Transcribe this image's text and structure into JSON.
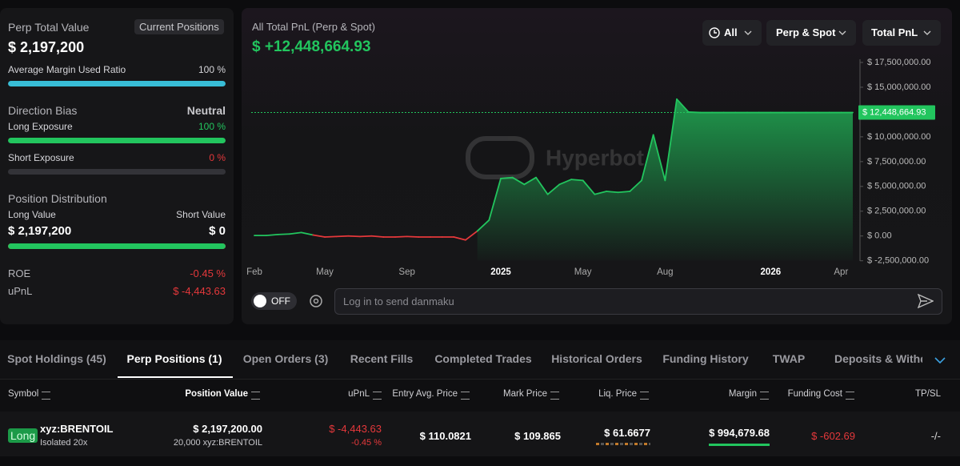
{
  "summary": {
    "perp_total_value_label": "Perp Total Value",
    "perp_total_value": "$ 2,197,200",
    "current_positions_button": "Current Positions",
    "margin_ratio_label": "Average Margin Used Ratio",
    "margin_ratio": {
      "value": 100,
      "label": "100 %"
    },
    "direction_bias_label": "Direction Bias",
    "direction_bias": "Neutral",
    "long_exposure_label": "Long Exposure",
    "long_exposure": {
      "value": 100,
      "label": "100 %"
    },
    "short_exposure_label": "Short Exposure",
    "short_exposure": {
      "value": 0,
      "label": "0 %"
    },
    "position_distribution_label": "Position Distribution",
    "long_value_label": "Long Value",
    "short_value_label": "Short Value",
    "long_value": {
      "value": 2197200,
      "label": "$ 2,197,200"
    },
    "short_value": {
      "value": 0,
      "label": "$ 0"
    },
    "roe_label": "ROE",
    "roe": "-0.45 %",
    "upnl_label": "uPnL",
    "upnl": "$ -4,443.63"
  },
  "chart": {
    "type": "line",
    "title": "All Total PnL (Perp & Spot)",
    "headline_value": "$ +12,448,664.93",
    "current_value_label": "$ 12,448,664.93",
    "watermark": "Hyperbot",
    "filters": [
      "All",
      "Perp & Spot",
      "Total PnL"
    ],
    "positive_color": "#22c55e",
    "negative_color": "#e5383b",
    "categories": [
      "Feb",
      null,
      null,
      null,
      null,
      null,
      "May",
      null,
      null,
      null,
      null,
      null,
      null,
      "Sep",
      null,
      null,
      null,
      null,
      null,
      null,
      null,
      "2025",
      null,
      null,
      null,
      null,
      null,
      null,
      "May",
      null,
      null,
      null,
      null,
      null,
      null,
      "Aug",
      null,
      null,
      null,
      null,
      null,
      null,
      null,
      null,
      "2026",
      null,
      null,
      null,
      null,
      null,
      "Apr",
      null
    ],
    "values": [
      50000,
      50000,
      150000,
      200000,
      350000,
      100000,
      -100000,
      -50000,
      0,
      -50000,
      0,
      -100000,
      -100000,
      -50000,
      -100000,
      -100000,
      -100000,
      -100000,
      -400000,
      500000,
      1600000,
      5800000,
      5900000,
      5200000,
      5900000,
      4200000,
      5200000,
      5700000,
      5600000,
      4200000,
      4500000,
      4400000,
      4500000,
      5600000,
      10200000,
      5600000,
      13800000,
      12500000,
      12450000,
      12450000,
      12450000,
      12450000,
      12450000,
      12450000,
      12450000,
      12450000,
      12450000,
      12450000,
      12450000,
      12450000,
      12450000,
      12448664.93
    ],
    "ylim": [
      -2500000,
      17500000
    ],
    "yticks": [
      {
        "value": -2500000,
        "label": "$ -2,500,000.00"
      },
      {
        "value": 0,
        "label": "$ 0.00"
      },
      {
        "value": 2500000,
        "label": "$ 2,500,000.00"
      },
      {
        "value": 5000000,
        "label": "$ 5,000,000.00"
      },
      {
        "value": 7500000,
        "label": "$ 7,500,000.00"
      },
      {
        "value": 10000000,
        "label": "$ 10,000,000.00"
      },
      {
        "value": 12500000,
        "label": "$ 12,500,000.00"
      },
      {
        "value": 15000000,
        "label": "$ 15,000,000.00"
      },
      {
        "value": 17500000,
        "label": "$ 17,500,000.00"
      }
    ]
  },
  "danmaku": {
    "toggle": "OFF",
    "placeholder": "Log in to send danmaku"
  },
  "tabs": [
    "Spot Holdings (45)",
    "Perp Positions (1)",
    "Open Orders (3)",
    "Recent Fills",
    "Completed Trades",
    "Historical Orders",
    "Funding History",
    "TWAP",
    "Deposits & Withdra"
  ],
  "table": {
    "columns": [
      "Symbol",
      "Position Value",
      "uPnL",
      "Entry Avg. Price",
      "Mark Price",
      "Liq. Price",
      "Margin",
      "Funding Cost",
      "TP/SL"
    ],
    "rows": [
      {
        "side": "Long",
        "symbol": "xyz:BRENTOIL",
        "leverage": "Isolated 20x",
        "position_value": "$ 2,197,200.00",
        "size": "20,000 xyz:BRENTOIL",
        "upnl": "$ -4,443.63",
        "upnl_pct": "-0.45 %",
        "entry_price": "$ 110.0821",
        "mark_price": "$ 109.865",
        "liq_price": "$ 61.6677",
        "margin": "$ 994,679.68",
        "funding_cost": "$ -602.69",
        "tpsl": "-/-"
      }
    ]
  }
}
